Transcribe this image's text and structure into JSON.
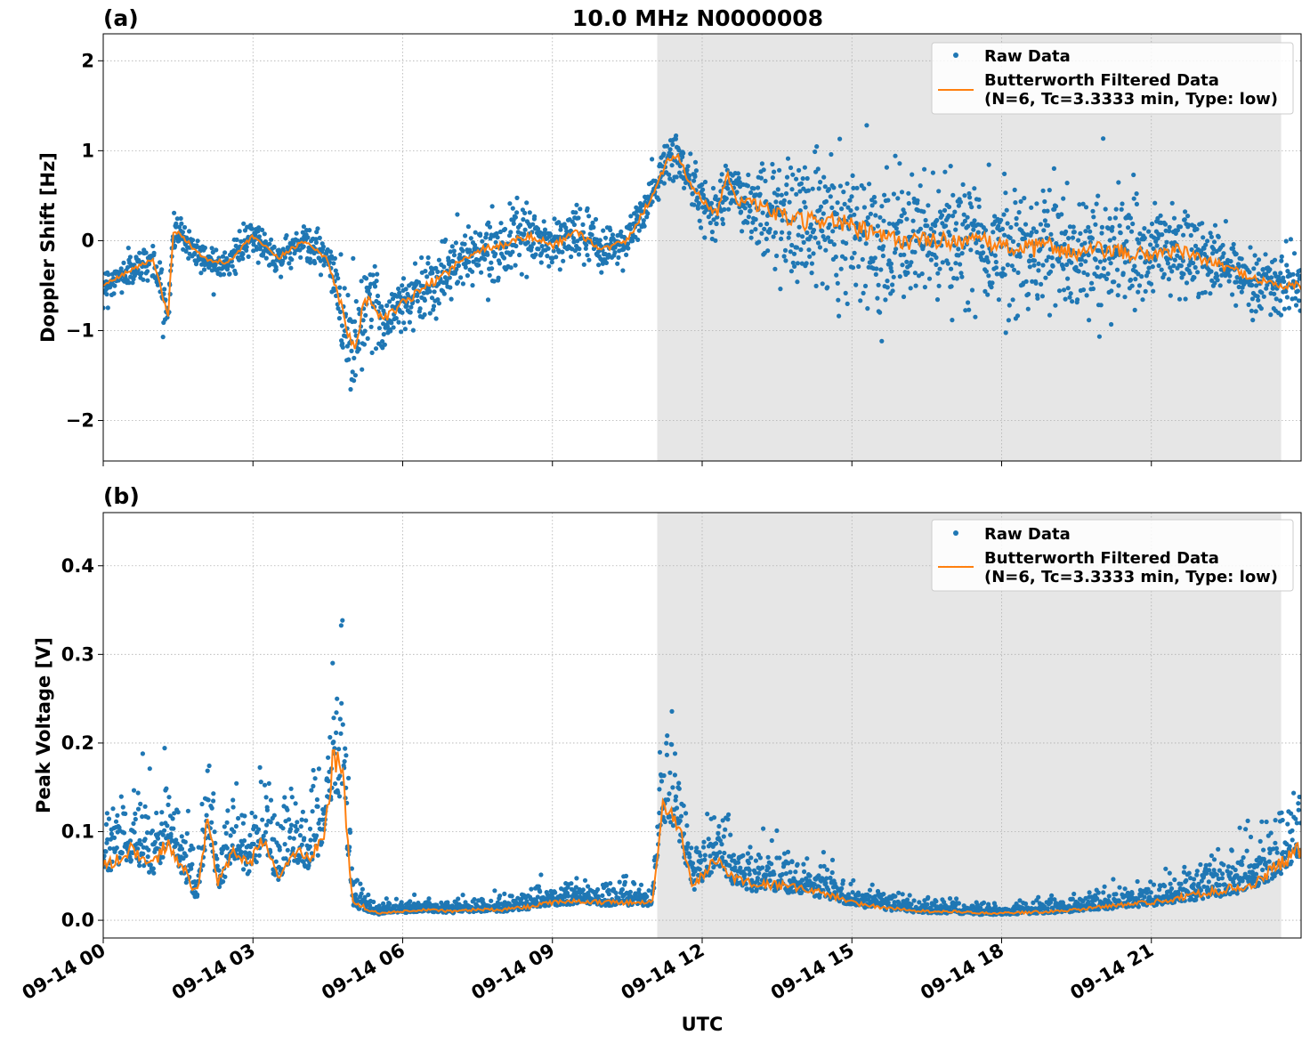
{
  "figure_title": "10.0 MHz N0000008",
  "xlabel": "UTC",
  "x_ticks": [
    "09-14 00",
    "09-14 03",
    "09-14 06",
    "09-14 09",
    "09-14 12",
    "09-14 15",
    "09-14 18",
    "09-14 21"
  ],
  "colors": {
    "raw": "#1f77b4",
    "filtered": "#ff7f0e",
    "shade": "#e6e6e6",
    "grid": "#b0b0b0"
  },
  "legend": {
    "raw_label": "Raw Data",
    "filtered_line1": "Butterworth Filtered Data",
    "filtered_line2": "(N=6, Tc=3.3333 min, Type: low)"
  },
  "chart_data": [
    {
      "type": "scatter",
      "panel_label": "(a)",
      "ylabel": "Doppler Shift [Hz]",
      "ylim": [
        -2.45,
        2.3
      ],
      "yticks": [
        -2,
        -1,
        0,
        1,
        2
      ],
      "ytick_labels": [
        "−2",
        "−1",
        "0",
        "1",
        "2"
      ],
      "xlim_hours": [
        0,
        24
      ],
      "grid": true,
      "legend_position": "top-right",
      "shaded_interval_hours": [
        11.1,
        23.6
      ],
      "x_hours": [
        0,
        0.5,
        1.0,
        1.3,
        1.4,
        1.5,
        2.0,
        2.5,
        3.0,
        3.5,
        4.0,
        4.5,
        4.8,
        5.0,
        5.3,
        5.6,
        6.0,
        6.5,
        7.0,
        7.5,
        8.0,
        8.5,
        9.0,
        9.5,
        10.0,
        10.5,
        11.0,
        11.3,
        11.5,
        11.8,
        12.0,
        12.3,
        12.5,
        12.7,
        13.0,
        13.5,
        14.0,
        14.5,
        15.0,
        15.5,
        16.0,
        16.5,
        17.0,
        17.5,
        18.0,
        18.5,
        19.0,
        19.5,
        20.0,
        20.5,
        21.0,
        21.5,
        22.0,
        22.5,
        23.0,
        23.5,
        24.0
      ],
      "series": [
        {
          "name": "Butterworth Filtered Data",
          "values": [
            -0.5,
            -0.35,
            -0.2,
            -0.85,
            0.1,
            0.1,
            -0.2,
            -0.25,
            0.05,
            -0.2,
            0.0,
            -0.2,
            -0.8,
            -1.2,
            -0.6,
            -0.9,
            -0.7,
            -0.5,
            -0.3,
            -0.1,
            -0.05,
            0.05,
            -0.05,
            0.1,
            -0.1,
            0.0,
            0.5,
            0.9,
            0.95,
            0.6,
            0.45,
            0.3,
            0.75,
            0.45,
            0.4,
            0.3,
            0.2,
            0.25,
            0.15,
            0.05,
            0.0,
            0.0,
            0.0,
            0.0,
            -0.05,
            -0.1,
            -0.05,
            -0.15,
            -0.1,
            -0.15,
            -0.15,
            -0.1,
            -0.2,
            -0.3,
            -0.4,
            -0.5,
            -0.5
          ]
        },
        {
          "name": "Raw Data",
          "spread_hz": [
            0.15,
            0.15,
            0.15,
            0.2,
            0.15,
            0.15,
            0.15,
            0.15,
            0.15,
            0.15,
            0.15,
            0.2,
            0.4,
            0.6,
            0.4,
            0.3,
            0.3,
            0.3,
            0.3,
            0.25,
            0.25,
            0.25,
            0.25,
            0.25,
            0.2,
            0.2,
            0.2,
            0.25,
            0.25,
            0.25,
            0.2,
            0.25,
            0.3,
            0.3,
            0.4,
            0.5,
            0.6,
            0.6,
            0.65,
            0.6,
            0.6,
            0.55,
            0.55,
            0.55,
            0.55,
            0.6,
            0.6,
            0.6,
            0.55,
            0.55,
            0.5,
            0.45,
            0.35,
            0.3,
            0.3,
            0.3,
            0.3
          ]
        }
      ]
    },
    {
      "type": "scatter",
      "panel_label": "(b)",
      "ylabel": "Peak Voltage [V]",
      "ylim": [
        -0.02,
        0.46
      ],
      "yticks": [
        0.0,
        0.1,
        0.2,
        0.3,
        0.4
      ],
      "ytick_labels": [
        "0.0",
        "0.1",
        "0.2",
        "0.3",
        "0.4"
      ],
      "xlim_hours": [
        0,
        24
      ],
      "grid": true,
      "legend_position": "top-right",
      "shaded_interval_hours": [
        11.1,
        23.6
      ],
      "x_hours": [
        0,
        0.3,
        0.6,
        1.0,
        1.3,
        1.6,
        1.9,
        2.1,
        2.3,
        2.6,
        2.9,
        3.2,
        3.5,
        3.8,
        4.1,
        4.4,
        4.6,
        4.8,
        5.0,
        5.5,
        6.0,
        6.5,
        7.0,
        7.5,
        8.0,
        8.5,
        9.0,
        9.5,
        10.0,
        10.5,
        11.0,
        11.2,
        11.4,
        11.6,
        11.8,
        12.0,
        12.3,
        12.6,
        13.0,
        13.5,
        14.0,
        14.5,
        15.0,
        15.5,
        16.0,
        16.5,
        17.0,
        17.5,
        18.0,
        18.5,
        19.0,
        19.5,
        20.0,
        20.5,
        21.0,
        21.5,
        22.0,
        22.5,
        23.0,
        23.5,
        24.0
      ],
      "series": [
        {
          "name": "Butterworth Filtered Data",
          "values": [
            0.06,
            0.07,
            0.08,
            0.06,
            0.09,
            0.06,
            0.03,
            0.12,
            0.04,
            0.08,
            0.06,
            0.09,
            0.05,
            0.08,
            0.07,
            0.09,
            0.18,
            0.16,
            0.02,
            0.008,
            0.01,
            0.012,
            0.01,
            0.012,
            0.012,
            0.015,
            0.02,
            0.022,
            0.02,
            0.02,
            0.02,
            0.13,
            0.12,
            0.09,
            0.04,
            0.05,
            0.07,
            0.05,
            0.04,
            0.04,
            0.035,
            0.03,
            0.02,
            0.015,
            0.012,
            0.01,
            0.01,
            0.008,
            0.008,
            0.009,
            0.01,
            0.012,
            0.015,
            0.018,
            0.02,
            0.025,
            0.03,
            0.035,
            0.04,
            0.06,
            0.08
          ]
        },
        {
          "name": "Raw Data",
          "spread_v": [
            0.04,
            0.045,
            0.05,
            0.05,
            0.05,
            0.05,
            0.04,
            0.06,
            0.04,
            0.05,
            0.05,
            0.05,
            0.04,
            0.05,
            0.05,
            0.06,
            0.12,
            0.12,
            0.02,
            0.006,
            0.007,
            0.008,
            0.008,
            0.009,
            0.01,
            0.012,
            0.014,
            0.016,
            0.015,
            0.016,
            0.016,
            0.07,
            0.06,
            0.05,
            0.03,
            0.035,
            0.04,
            0.035,
            0.03,
            0.03,
            0.025,
            0.022,
            0.015,
            0.012,
            0.01,
            0.008,
            0.008,
            0.007,
            0.007,
            0.008,
            0.009,
            0.01,
            0.012,
            0.014,
            0.016,
            0.02,
            0.025,
            0.03,
            0.035,
            0.045,
            0.06
          ]
        }
      ]
    }
  ]
}
